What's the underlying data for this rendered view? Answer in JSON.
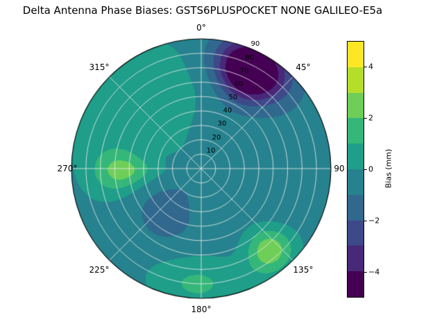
{
  "figure": {
    "background": "#ffffff"
  },
  "title": "Delta Antenna Phase Biases: GSTS6PLUSPOCKET NONE GALILEO-E5a",
  "chart_data": {
    "type": "polar_contour",
    "title": "Delta Antenna Phase Biases: GSTS6PLUSPOCKET NONE GALILEO-E5a",
    "angular_ticks": [
      "0°",
      "45°",
      "90",
      "135°",
      "180°",
      "225°",
      "270°",
      "315°"
    ],
    "angular_tick_degrees": [
      0,
      45,
      90,
      135,
      180,
      225,
      270,
      315
    ],
    "radial_ticks": [
      "10",
      "20",
      "30",
      "40",
      "50",
      "60",
      "70",
      "80",
      "90"
    ],
    "radial_range": [
      0,
      90
    ],
    "radial_label_azimuth_deg": 22.5,
    "grid": {
      "angular_step_deg": 45,
      "radial_step": 10,
      "color": "#eeeeee"
    },
    "colorbar": {
      "label": "Bias (mm)",
      "tick_labels": [
        "4",
        "2",
        "0",
        "−2",
        "−4"
      ],
      "tick_values": [
        4,
        2,
        0,
        -2,
        -4
      ],
      "value_range": [
        -5,
        5
      ],
      "levels": [
        -5,
        -4,
        -3,
        -2,
        -1,
        0,
        1,
        2,
        3,
        4,
        5
      ],
      "colors": [
        "#440154",
        "#482878",
        "#3e4989",
        "#31688e",
        "#26828e",
        "#1f9e89",
        "#35b779",
        "#6ece58",
        "#b5de2b",
        "#fde725"
      ]
    },
    "field": {
      "units": "mm",
      "base": -0.4,
      "blobs": [
        {
          "az": 27,
          "r": 76,
          "amp": -6.8,
          "saz": 18,
          "sr": 20,
          "note": "strong negative bias lobe near 30deg azimuth at outer radii (dark purple)"
        },
        {
          "az": 315,
          "r": 60,
          "amp": 1.1,
          "saz": 45,
          "sr": 40,
          "note": "mild positive region north-west"
        },
        {
          "az": 268,
          "r": 55,
          "amp": 2.6,
          "saz": 14,
          "sr": 20,
          "note": "positive green lobe west"
        },
        {
          "az": 140,
          "r": 74,
          "amp": 3.2,
          "saz": 13,
          "sr": 16,
          "note": "positive green lobe south-east reaching rim"
        },
        {
          "az": 182,
          "r": 80,
          "amp": 1.6,
          "saz": 22,
          "sr": 18,
          "note": "greenish band at southern rim"
        },
        {
          "az": 218,
          "r": 38,
          "amp": -1.2,
          "saz": 30,
          "sr": 22,
          "note": "darker teal-blue interior south-west"
        },
        {
          "az": 90,
          "r": 55,
          "amp": -0.5,
          "saz": 40,
          "sr": 40,
          "note": "slightly negative eastern half"
        }
      ]
    }
  }
}
